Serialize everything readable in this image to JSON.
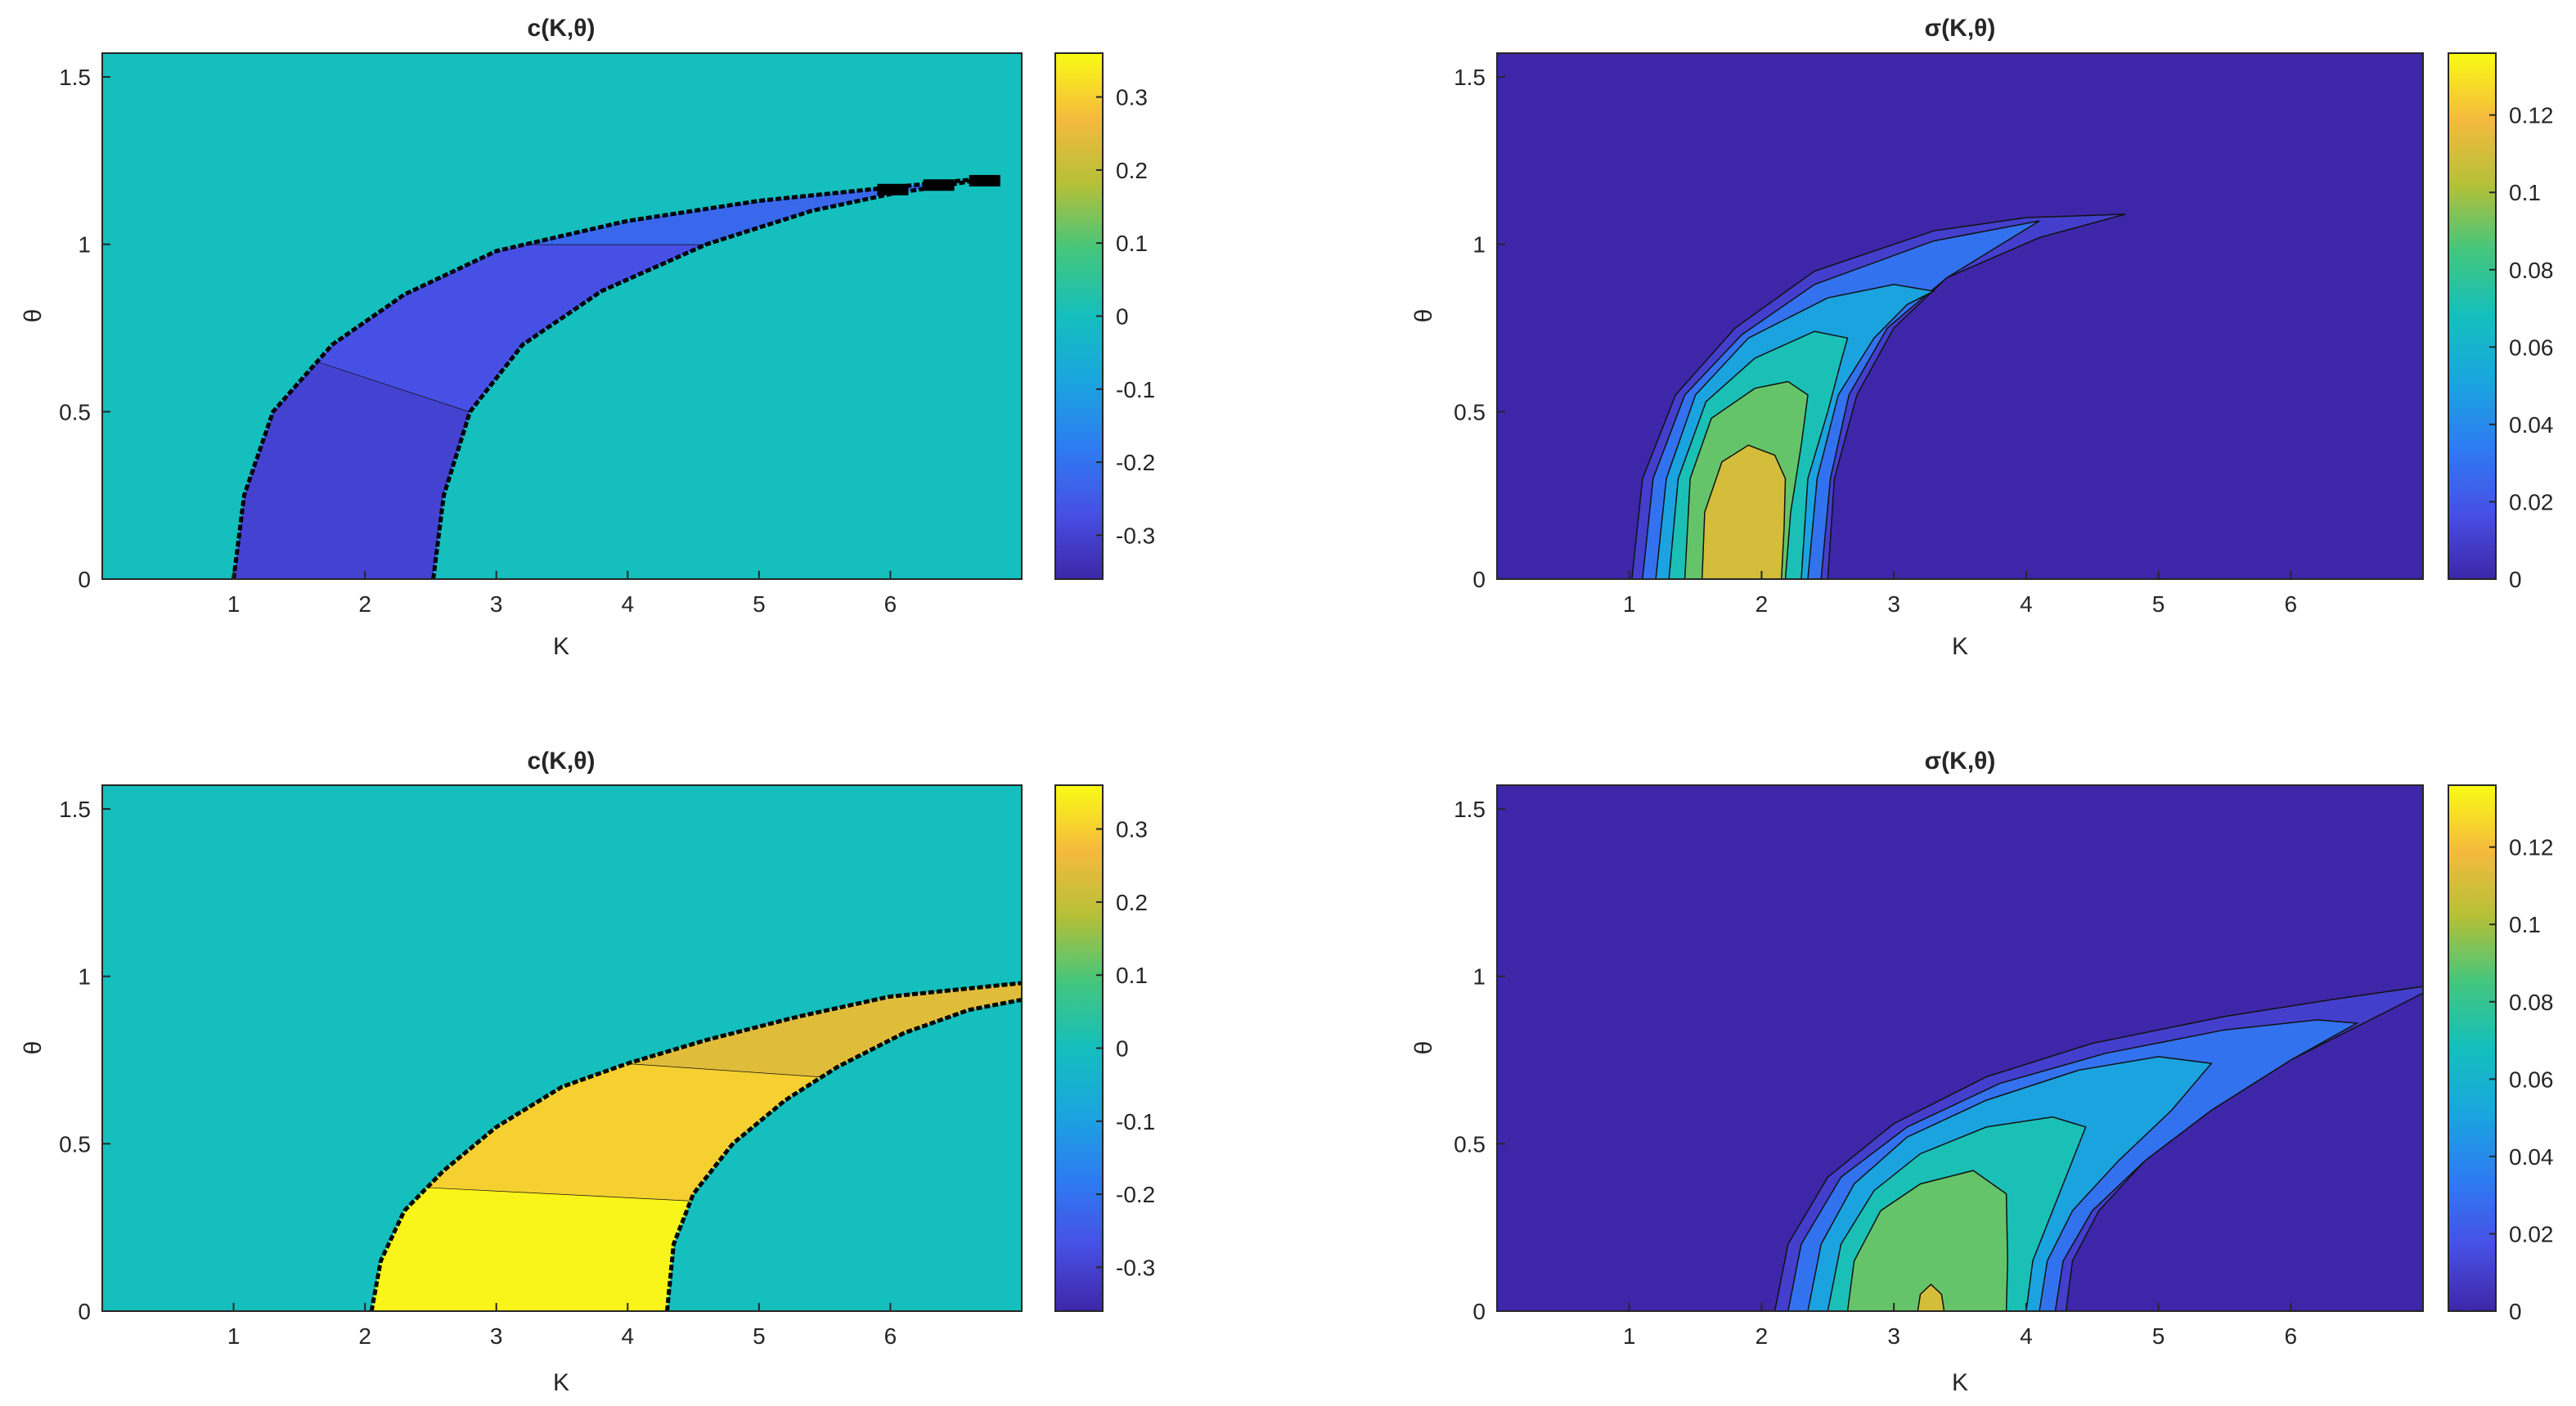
{
  "chart_data": [
    {
      "type": "heatmap",
      "title": "c(K,θ)",
      "xlabel": "K",
      "ylabel": "θ",
      "xlim": [
        0,
        7
      ],
      "ylim": [
        0,
        1.571
      ],
      "x_ticks": [
        1,
        2,
        3,
        4,
        5,
        6
      ],
      "y_ticks": [
        0,
        0.5,
        1,
        1.5
      ],
      "background_value": 0,
      "colorbar": {
        "range": [
          -0.36,
          0.36
        ],
        "ticks": [
          -0.3,
          -0.2,
          -0.1,
          0,
          0.1,
          0.2,
          0.3
        ]
      },
      "band": {
        "left_boundary": [
          [
            1.0,
            0
          ],
          [
            1.08,
            0.25
          ],
          [
            1.3,
            0.5
          ],
          [
            1.75,
            0.7
          ],
          [
            2.3,
            0.85
          ],
          [
            3.0,
            0.98
          ],
          [
            4.0,
            1.07
          ],
          [
            5.0,
            1.13
          ],
          [
            6.0,
            1.17
          ],
          [
            6.8,
            1.2
          ]
        ],
        "right_boundary": [
          [
            2.52,
            0
          ],
          [
            2.6,
            0.25
          ],
          [
            2.8,
            0.5
          ],
          [
            3.2,
            0.7
          ],
          [
            3.8,
            0.86
          ],
          [
            4.6,
            1.0
          ],
          [
            5.4,
            1.1
          ],
          [
            6.0,
            1.15
          ],
          [
            6.8,
            1.2
          ]
        ],
        "regions": [
          {
            "theta_from": 0,
            "theta_to_left": 0.65,
            "theta_to_right": 0.5,
            "value": -0.3
          },
          {
            "theta_from_left": 0.65,
            "theta_from_right": 0.5,
            "theta_to_left": 1.0,
            "theta_to_right": 1.0,
            "value": -0.27
          },
          {
            "theta_from_left": 1.0,
            "theta_from_right": 1.0,
            "theta_to": 1.2,
            "value": -0.22
          }
        ],
        "dashes_beyond_k": 5.8
      }
    },
    {
      "type": "heatmap",
      "title": "σ(K,θ)",
      "xlabel": "K",
      "ylabel": "θ",
      "xlim": [
        0,
        7
      ],
      "ylim": [
        0,
        1.571
      ],
      "x_ticks": [
        1,
        2,
        3,
        4,
        5,
        6
      ],
      "y_ticks": [
        0,
        0.5,
        1,
        1.5
      ],
      "background_value": 0,
      "colorbar": {
        "range": [
          0,
          0.136
        ],
        "ticks": [
          0,
          0.02,
          0.04,
          0.06,
          0.08,
          0.1,
          0.12
        ]
      },
      "contours": [
        {
          "value": 0.01,
          "left": [
            [
              1.02,
              0
            ],
            [
              1.1,
              0.3
            ],
            [
              1.35,
              0.55
            ],
            [
              1.8,
              0.75
            ],
            [
              2.4,
              0.92
            ],
            [
              3.3,
              1.04
            ],
            [
              4.0,
              1.08
            ],
            [
              4.75,
              1.09
            ]
          ],
          "right": [
            [
              2.5,
              0
            ],
            [
              2.55,
              0.3
            ],
            [
              2.72,
              0.55
            ],
            [
              3.0,
              0.75
            ],
            [
              3.4,
              0.9
            ],
            [
              4.1,
              1.02
            ],
            [
              4.75,
              1.09
            ]
          ]
        },
        {
          "value": 0.03,
          "left": [
            [
              1.1,
              0
            ],
            [
              1.18,
              0.3
            ],
            [
              1.42,
              0.55
            ],
            [
              1.85,
              0.73
            ],
            [
              2.4,
              0.88
            ],
            [
              3.3,
              1.01
            ],
            [
              4.1,
              1.07
            ]
          ],
          "right": [
            [
              2.45,
              0
            ],
            [
              2.52,
              0.3
            ],
            [
              2.66,
              0.55
            ],
            [
              2.95,
              0.75
            ],
            [
              3.4,
              0.9
            ],
            [
              4.1,
              1.07
            ]
          ]
        },
        {
          "value": 0.05,
          "left": [
            [
              1.2,
              0
            ],
            [
              1.28,
              0.3
            ],
            [
              1.5,
              0.55
            ],
            [
              1.9,
              0.72
            ],
            [
              2.5,
              0.84
            ],
            [
              3.0,
              0.88
            ],
            [
              3.3,
              0.86
            ]
          ],
          "right": [
            [
              2.35,
              0
            ],
            [
              2.42,
              0.3
            ],
            [
              2.58,
              0.55
            ],
            [
              2.85,
              0.72
            ],
            [
              3.1,
              0.82
            ],
            [
              3.3,
              0.86
            ]
          ]
        },
        {
          "value": 0.07,
          "left": [
            [
              1.3,
              0
            ],
            [
              1.37,
              0.3
            ],
            [
              1.58,
              0.53
            ],
            [
              1.95,
              0.66
            ],
            [
              2.4,
              0.74
            ],
            [
              2.65,
              0.72
            ]
          ],
          "right": [
            [
              2.3,
              0
            ],
            [
              2.35,
              0.3
            ],
            [
              2.5,
              0.5
            ],
            [
              2.6,
              0.65
            ],
            [
              2.65,
              0.72
            ]
          ]
        },
        {
          "value": 0.09,
          "left": [
            [
              1.42,
              0
            ],
            [
              1.46,
              0.3
            ],
            [
              1.62,
              0.48
            ],
            [
              1.95,
              0.57
            ],
            [
              2.2,
              0.59
            ],
            [
              2.35,
              0.55
            ]
          ],
          "right": [
            [
              2.18,
              0
            ],
            [
              2.22,
              0.2
            ],
            [
              2.3,
              0.4
            ],
            [
              2.35,
              0.55
            ]
          ]
        },
        {
          "value": 0.11,
          "left": [
            [
              1.55,
              0
            ],
            [
              1.57,
              0.2
            ],
            [
              1.7,
              0.35
            ],
            [
              1.9,
              0.4
            ],
            [
              2.1,
              0.37
            ],
            [
              2.18,
              0.3
            ]
          ],
          "right": [
            [
              2.15,
              0
            ],
            [
              2.17,
              0.15
            ],
            [
              2.18,
              0.3
            ]
          ]
        }
      ]
    },
    {
      "type": "heatmap",
      "title": "c(K,θ)",
      "xlabel": "K",
      "ylabel": "θ",
      "xlim": [
        0,
        7
      ],
      "ylim": [
        0,
        1.571
      ],
      "x_ticks": [
        1,
        2,
        3,
        4,
        5,
        6
      ],
      "y_ticks": [
        0,
        0.5,
        1,
        1.5
      ],
      "background_value": 0,
      "colorbar": {
        "range": [
          -0.36,
          0.36
        ],
        "ticks": [
          -0.3,
          -0.2,
          -0.1,
          0,
          0.1,
          0.2,
          0.3
        ]
      },
      "band": {
        "left_boundary": [
          [
            2.05,
            0
          ],
          [
            2.12,
            0.15
          ],
          [
            2.3,
            0.3
          ],
          [
            2.6,
            0.42
          ],
          [
            3.0,
            0.55
          ],
          [
            3.5,
            0.67
          ],
          [
            4.0,
            0.74
          ],
          [
            4.6,
            0.81
          ],
          [
            5.3,
            0.88
          ],
          [
            6.0,
            0.94
          ],
          [
            7.0,
            0.98
          ]
        ],
        "right_boundary": [
          [
            4.3,
            0
          ],
          [
            4.35,
            0.2
          ],
          [
            4.5,
            0.35
          ],
          [
            4.8,
            0.5
          ],
          [
            5.2,
            0.63
          ],
          [
            5.6,
            0.73
          ],
          [
            6.1,
            0.83
          ],
          [
            6.6,
            0.9
          ],
          [
            7.0,
            0.93
          ]
        ],
        "regions": [
          {
            "theta_from": 0,
            "theta_to_left": 0.37,
            "theta_to_right": 0.33,
            "value": 0.35
          },
          {
            "theta_from_left": 0.37,
            "theta_from_right": 0.33,
            "theta_to_left": 0.74,
            "theta_to_right": 0.7,
            "value": 0.3
          },
          {
            "theta_from_left": 0.74,
            "theta_from_right": 0.7,
            "theta_to": 0.98,
            "value": 0.24
          }
        ]
      }
    },
    {
      "type": "heatmap",
      "title": "σ(K,θ)",
      "xlabel": "K",
      "ylabel": "θ",
      "xlim": [
        0,
        7
      ],
      "ylim": [
        0,
        1.571
      ],
      "x_ticks": [
        1,
        2,
        3,
        4,
        5,
        6
      ],
      "y_ticks": [
        0,
        0.5,
        1,
        1.5
      ],
      "background_value": 0,
      "colorbar": {
        "range": [
          0,
          0.136
        ],
        "ticks": [
          0,
          0.02,
          0.04,
          0.06,
          0.08,
          0.1,
          0.12
        ]
      },
      "contours": [
        {
          "value": 0.01,
          "left": [
            [
              2.1,
              0
            ],
            [
              2.2,
              0.2
            ],
            [
              2.5,
              0.4
            ],
            [
              3.0,
              0.56
            ],
            [
              3.7,
              0.7
            ],
            [
              4.5,
              0.8
            ],
            [
              5.5,
              0.88
            ],
            [
              6.3,
              0.93
            ],
            [
              7.0,
              0.97
            ]
          ],
          "right": [
            [
              4.3,
              0
            ],
            [
              4.35,
              0.15
            ],
            [
              4.55,
              0.3
            ],
            [
              4.9,
              0.45
            ],
            [
              5.4,
              0.6
            ],
            [
              6.0,
              0.75
            ],
            [
              6.6,
              0.87
            ],
            [
              7.0,
              0.95
            ]
          ]
        },
        {
          "value": 0.03,
          "left": [
            [
              2.2,
              0
            ],
            [
              2.3,
              0.2
            ],
            [
              2.6,
              0.4
            ],
            [
              3.1,
              0.55
            ],
            [
              3.8,
              0.68
            ],
            [
              4.6,
              0.77
            ],
            [
              5.5,
              0.84
            ],
            [
              6.2,
              0.87
            ],
            [
              6.5,
              0.86
            ]
          ],
          "right": [
            [
              4.22,
              0
            ],
            [
              4.28,
              0.15
            ],
            [
              4.5,
              0.3
            ],
            [
              4.9,
              0.45
            ],
            [
              5.4,
              0.6
            ],
            [
              6.0,
              0.75
            ],
            [
              6.5,
              0.86
            ]
          ]
        },
        {
          "value": 0.05,
          "left": [
            [
              2.35,
              0
            ],
            [
              2.45,
              0.2
            ],
            [
              2.7,
              0.38
            ],
            [
              3.1,
              0.52
            ],
            [
              3.7,
              0.63
            ],
            [
              4.4,
              0.72
            ],
            [
              5.0,
              0.76
            ],
            [
              5.4,
              0.74
            ]
          ],
          "right": [
            [
              4.1,
              0
            ],
            [
              4.16,
              0.15
            ],
            [
              4.35,
              0.3
            ],
            [
              4.7,
              0.45
            ],
            [
              5.1,
              0.6
            ],
            [
              5.4,
              0.74
            ]
          ]
        },
        {
          "value": 0.07,
          "left": [
            [
              2.5,
              0
            ],
            [
              2.6,
              0.2
            ],
            [
              2.85,
              0.36
            ],
            [
              3.2,
              0.47
            ],
            [
              3.7,
              0.55
            ],
            [
              4.2,
              0.58
            ],
            [
              4.45,
              0.55
            ]
          ],
          "right": [
            [
              4.0,
              0
            ],
            [
              4.05,
              0.15
            ],
            [
              4.2,
              0.3
            ],
            [
              4.35,
              0.45
            ],
            [
              4.45,
              0.55
            ]
          ]
        },
        {
          "value": 0.09,
          "left": [
            [
              2.65,
              0
            ],
            [
              2.7,
              0.15
            ],
            [
              2.9,
              0.3
            ],
            [
              3.2,
              0.38
            ],
            [
              3.6,
              0.42
            ],
            [
              3.85,
              0.35
            ]
          ],
          "right": [
            [
              3.85,
              0
            ],
            [
              3.86,
              0.15
            ],
            [
              3.85,
              0.35
            ]
          ]
        },
        {
          "value": 0.11,
          "left": [
            [
              3.18,
              0
            ],
            [
              3.2,
              0.05
            ],
            [
              3.28,
              0.08
            ],
            [
              3.36,
              0.05
            ],
            [
              3.38,
              0
            ]
          ],
          "right": [
            [
              3.38,
              0
            ]
          ]
        }
      ]
    }
  ]
}
